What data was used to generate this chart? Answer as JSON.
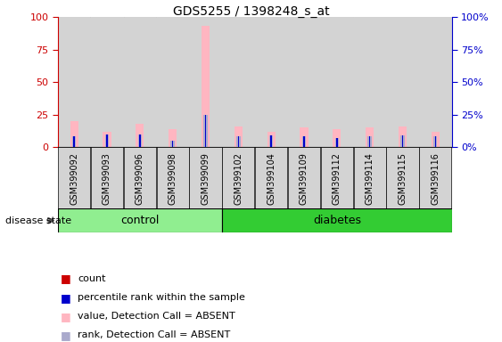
{
  "title": "GDS5255 / 1398248_s_at",
  "samples": [
    "GSM399092",
    "GSM399093",
    "GSM399096",
    "GSM399098",
    "GSM399099",
    "GSM399102",
    "GSM399104",
    "GSM399109",
    "GSM399112",
    "GSM399114",
    "GSM399115",
    "GSM399116"
  ],
  "n_control": 5,
  "n_diabetes": 7,
  "value_absent": [
    20,
    12,
    18,
    14,
    93,
    16,
    12,
    15,
    14,
    15,
    16,
    12
  ],
  "rank_absent": [
    8,
    10,
    10,
    5,
    25,
    8,
    9,
    8,
    7,
    8,
    9,
    8
  ],
  "count_red": [
    1,
    1,
    1,
    1,
    1,
    1,
    1,
    1,
    1,
    1,
    1,
    1
  ],
  "percentile_blue": [
    8,
    10,
    10,
    5,
    25,
    8,
    9,
    8,
    7,
    8,
    9,
    8
  ],
  "ylim": [
    0,
    100
  ],
  "yticks": [
    0,
    25,
    50,
    75,
    100
  ],
  "color_value_absent": "#FFB6C1",
  "color_rank_absent": "#AAAACC",
  "color_count": "#CC0000",
  "color_percentile": "#0000CC",
  "color_control_bg": "#90EE90",
  "color_diabetes_bg": "#33CC33",
  "color_sample_bg": "#D3D3D3",
  "color_left_axis": "#CC0000",
  "color_right_axis": "#0000CC",
  "group_label": "disease state",
  "legend_items": [
    {
      "color": "#CC0000",
      "label": "count"
    },
    {
      "color": "#0000CC",
      "label": "percentile rank within the sample"
    },
    {
      "color": "#FFB6C1",
      "label": "value, Detection Call = ABSENT"
    },
    {
      "color": "#AAAACC",
      "label": "rank, Detection Call = ABSENT"
    }
  ]
}
